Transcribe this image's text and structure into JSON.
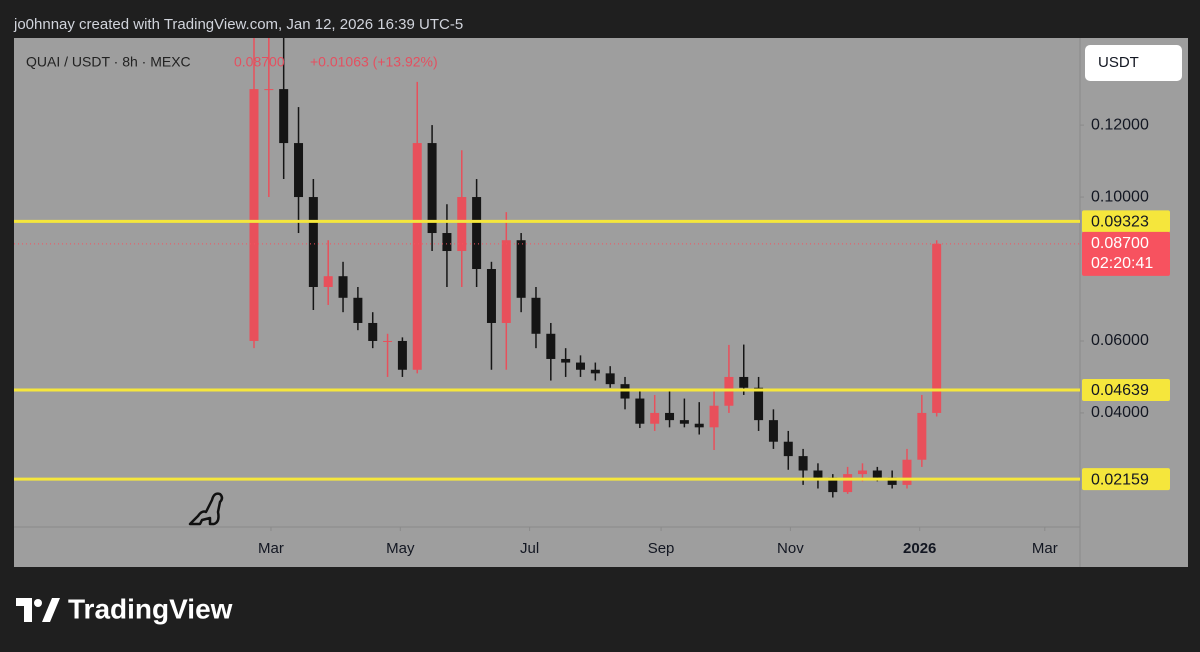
{
  "header": "jo0hnnay created with TradingView.com, Jan 12, 2026 16:39 UTC-5",
  "currency_button": "USDT",
  "brand": "TradingView",
  "chart_data": {
    "type": "candlestick",
    "title": "QUAI / USDT · 8h · MEXC",
    "legend_price": "0.08700",
    "legend_change": "+0.01063 (+13.92%)",
    "up_color": "#e8505b",
    "down_color": "#151515",
    "level_color": "#f5e63c",
    "price_label": {
      "value": 0.087,
      "label": "0.08700",
      "countdown": "02:20:41",
      "color": "#f7525f"
    },
    "levels": [
      {
        "value": 0.09323,
        "label": "0.09323"
      },
      {
        "value": 0.04639,
        "label": "0.04639"
      },
      {
        "value": 0.02159,
        "label": "0.02159"
      }
    ],
    "xlim": [
      -62.2,
      440.6
    ],
    "xticks": [
      {
        "value": 59,
        "label": "Mar"
      },
      {
        "value": 120,
        "label": "May"
      },
      {
        "value": 181,
        "label": "Jul"
      },
      {
        "value": 243,
        "label": "Sep"
      },
      {
        "value": 304,
        "label": "Nov"
      },
      {
        "value": 365,
        "label": "2026"
      },
      {
        "value": 424,
        "label": "Mar"
      }
    ],
    "ylim": [
      0.0083,
      0.1442
    ],
    "yticks": [
      {
        "value": 0.12,
        "label": "0.12000"
      },
      {
        "value": 0.1,
        "label": "0.10000"
      },
      {
        "value": 0.06,
        "label": "0.06000"
      },
      {
        "value": 0.04,
        "label": "0.04000"
      }
    ],
    "x": [
      51,
      58,
      65,
      72,
      79,
      86,
      93,
      100,
      107,
      114,
      121,
      128,
      135,
      142,
      149,
      156,
      163,
      170,
      177,
      184,
      191,
      198,
      205,
      212,
      219,
      226,
      233,
      240,
      247,
      254,
      261,
      268,
      275,
      282,
      289,
      296,
      303,
      310,
      317,
      324,
      331,
      338,
      345,
      352,
      359,
      366,
      373
    ],
    "open": [
      0.06,
      0.13,
      0.13,
      0.115,
      0.1,
      0.075,
      0.078,
      0.072,
      0.065,
      0.06,
      0.06,
      0.052,
      0.115,
      0.09,
      0.085,
      0.1,
      0.08,
      0.065,
      0.088,
      0.072,
      0.062,
      0.055,
      0.054,
      0.052,
      0.051,
      0.048,
      0.044,
      0.037,
      0.04,
      0.038,
      0.037,
      0.036,
      0.042,
      0.05,
      0.047,
      0.038,
      0.032,
      0.028,
      0.024,
      0.022,
      0.018,
      0.023,
      0.024,
      0.022,
      0.02,
      0.027,
      0.04
    ],
    "high": [
      0.16,
      0.16,
      0.145,
      0.125,
      0.105,
      0.088,
      0.082,
      0.075,
      0.068,
      0.062,
      0.061,
      0.132,
      0.12,
      0.098,
      0.113,
      0.105,
      0.082,
      0.0958,
      0.09,
      0.075,
      0.065,
      0.058,
      0.056,
      0.054,
      0.053,
      0.05,
      0.046,
      0.045,
      0.046,
      0.044,
      0.043,
      0.046,
      0.0589,
      0.059,
      0.05,
      0.041,
      0.035,
      0.03,
      0.026,
      0.023,
      0.025,
      0.026,
      0.025,
      0.024,
      0.03,
      0.045,
      0.088
    ],
    "low": [
      0.058,
      0.1,
      0.105,
      0.09,
      0.0686,
      0.07,
      0.068,
      0.063,
      0.058,
      0.05,
      0.05,
      0.051,
      0.085,
      0.075,
      0.075,
      0.075,
      0.052,
      0.052,
      0.068,
      0.058,
      0.049,
      0.05,
      0.05,
      0.049,
      0.047,
      0.041,
      0.0358,
      0.035,
      0.036,
      0.036,
      0.034,
      0.0297,
      0.04,
      0.045,
      0.035,
      0.03,
      0.0242,
      0.02,
      0.019,
      0.0165,
      0.0175,
      0.021,
      0.021,
      0.019,
      0.019,
      0.025,
      0.039
    ],
    "close": [
      0.13,
      0.13,
      0.115,
      0.1,
      0.075,
      0.078,
      0.072,
      0.065,
      0.06,
      0.06,
      0.052,
      0.115,
      0.09,
      0.085,
      0.1,
      0.08,
      0.065,
      0.088,
      0.072,
      0.062,
      0.055,
      0.054,
      0.052,
      0.051,
      0.048,
      0.044,
      0.037,
      0.04,
      0.038,
      0.037,
      0.036,
      0.042,
      0.05,
      0.047,
      0.038,
      0.032,
      0.028,
      0.024,
      0.022,
      0.018,
      0.023,
      0.024,
      0.022,
      0.02,
      0.027,
      0.04,
      0.087
    ]
  }
}
